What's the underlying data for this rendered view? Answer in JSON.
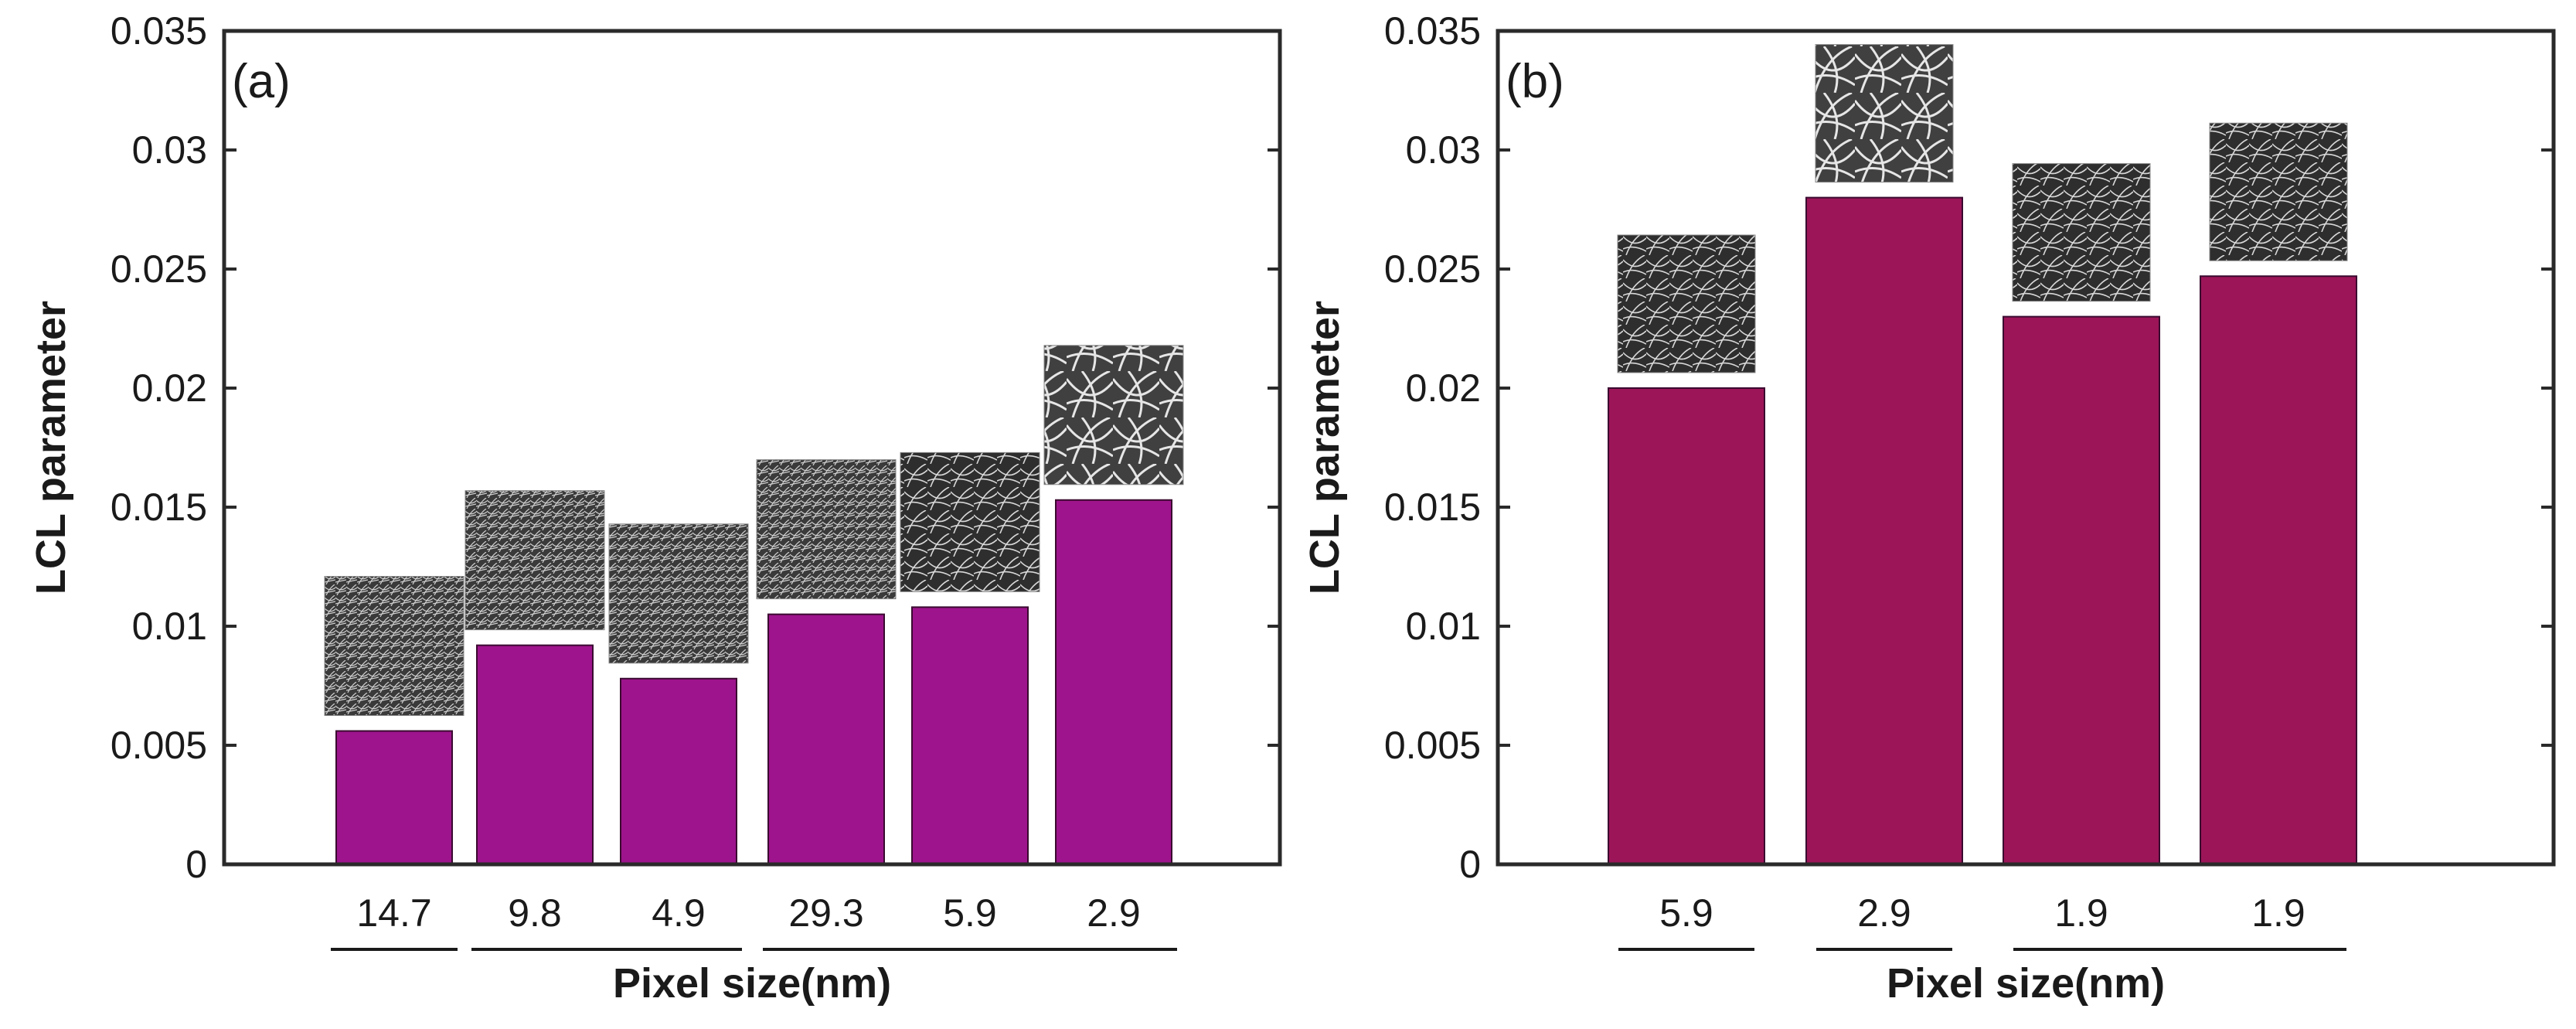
{
  "chart_data": [
    {
      "type": "bar",
      "panel_label": "(a)",
      "categories": [
        "14.7",
        "9.8",
        "4.9",
        "29.3",
        "5.9",
        "2.9"
      ],
      "values": [
        0.0056,
        0.0092,
        0.0078,
        0.0105,
        0.0108,
        0.0153
      ],
      "xlabel": "Pixel size(nm)",
      "ylabel": "LCL parameter",
      "ylim": [
        0,
        0.035
      ],
      "yticks": [
        "0",
        "0.005",
        "0.01",
        "0.015",
        "0.02",
        "0.025",
        "0.03",
        "0.035"
      ],
      "bar_color": "#9e148c",
      "image_insets": "SEM fiber-network micrograph above each bar",
      "groups": [
        [
          0
        ],
        [
          1,
          2
        ],
        [
          3,
          4,
          5
        ]
      ]
    },
    {
      "type": "bar",
      "panel_label": "(b)",
      "categories": [
        "5.9",
        "2.9",
        "1.9",
        "1.9"
      ],
      "values": [
        0.02,
        0.028,
        0.023,
        0.0247
      ],
      "xlabel": "Pixel size(nm)",
      "ylabel": "LCL parameter",
      "ylim": [
        0,
        0.035
      ],
      "yticks": [
        "0",
        "0.005",
        "0.01",
        "0.015",
        "0.02",
        "0.025",
        "0.03",
        "0.035"
      ],
      "bar_color": "#9c1558",
      "image_insets": "SEM fiber-network micrograph above each bar",
      "groups": [
        [
          0
        ],
        [
          1
        ],
        [
          2,
          3
        ]
      ]
    }
  ]
}
